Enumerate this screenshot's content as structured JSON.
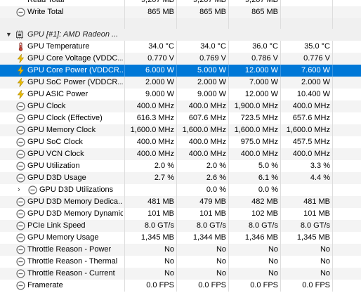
{
  "top_partial": {
    "label": "Read Total",
    "values": [
      "9,207 MB",
      "9,207 MB",
      "9,207 MB",
      ""
    ]
  },
  "write_total": {
    "label": "Write Total",
    "values": [
      "865 MB",
      "865 MB",
      "865 MB",
      ""
    ]
  },
  "group": {
    "label": "GPU [#1]: AMD Radeon ..."
  },
  "rows": [
    {
      "label": "GPU Temperature",
      "icon": "thermometer-icon",
      "values": [
        "34.0 °C",
        "34.0 °C",
        "36.0 °C",
        "35.0 °C"
      ]
    },
    {
      "label": "GPU Core Voltage (VDDC...",
      "icon": "lightning-icon",
      "values": [
        "0.770 V",
        "0.769 V",
        "0.786 V",
        "0.776 V"
      ]
    },
    {
      "label": "GPU Core Power (VDDCR...",
      "icon": "lightning-icon",
      "values": [
        "6.000 W",
        "5.000 W",
        "12.000 W",
        "7.600 W"
      ],
      "selected": true
    },
    {
      "label": "GPU SoC Power (VDDCR...",
      "icon": "lightning-icon",
      "values": [
        "2.000 W",
        "2.000 W",
        "7.000 W",
        "2.000 W"
      ]
    },
    {
      "label": "GPU ASIC Power",
      "icon": "lightning-icon",
      "values": [
        "9.000 W",
        "9.000 W",
        "12.000 W",
        "10.400 W"
      ]
    },
    {
      "label": "GPU Clock",
      "icon": "gauge-icon",
      "values": [
        "400.0 MHz",
        "400.0 MHz",
        "1,900.0 MHz",
        "400.0 MHz"
      ]
    },
    {
      "label": "GPU Clock (Effective)",
      "icon": "gauge-icon",
      "values": [
        "616.3 MHz",
        "607.6 MHz",
        "723.5 MHz",
        "657.6 MHz"
      ]
    },
    {
      "label": "GPU Memory Clock",
      "icon": "gauge-icon",
      "values": [
        "1,600.0 MHz",
        "1,600.0 MHz",
        "1,600.0 MHz",
        "1,600.0 MHz"
      ]
    },
    {
      "label": "GPU SoC Clock",
      "icon": "gauge-icon",
      "values": [
        "400.0 MHz",
        "400.0 MHz",
        "975.0 MHz",
        "457.5 MHz"
      ]
    },
    {
      "label": "GPU VCN Clock",
      "icon": "gauge-icon",
      "values": [
        "400.0 MHz",
        "400.0 MHz",
        "400.0 MHz",
        "400.0 MHz"
      ]
    },
    {
      "label": "GPU Utilization",
      "icon": "gauge-icon",
      "values": [
        "2.0 %",
        "2.0 %",
        "5.0 %",
        "3.3 %"
      ]
    },
    {
      "label": "GPU D3D Usage",
      "icon": "gauge-icon",
      "values": [
        "2.7 %",
        "2.6 %",
        "6.1 %",
        "4.4 %"
      ]
    },
    {
      "label": "GPU D3D Utilizations",
      "icon": "gauge-icon",
      "values": [
        "",
        "0.0 %",
        "0.0 %",
        ""
      ],
      "indent": true,
      "expander": "›"
    },
    {
      "label": "GPU D3D Memory Dedica...",
      "icon": "gauge-icon",
      "values": [
        "481 MB",
        "479 MB",
        "482 MB",
        "481 MB"
      ]
    },
    {
      "label": "GPU D3D Memory Dynamic",
      "icon": "gauge-icon",
      "values": [
        "101 MB",
        "101 MB",
        "102 MB",
        "101 MB"
      ]
    },
    {
      "label": "PCIe Link Speed",
      "icon": "gauge-icon",
      "values": [
        "8.0 GT/s",
        "8.0 GT/s",
        "8.0 GT/s",
        "8.0 GT/s"
      ]
    },
    {
      "label": "GPU Memory Usage",
      "icon": "gauge-icon",
      "values": [
        "1,345 MB",
        "1,344 MB",
        "1,346 MB",
        "1,345 MB"
      ]
    },
    {
      "label": "Throttle Reason - Power",
      "icon": "gauge-icon",
      "values": [
        "No",
        "No",
        "No",
        "No"
      ]
    },
    {
      "label": "Throttle Reason - Thermal",
      "icon": "gauge-icon",
      "values": [
        "No",
        "No",
        "No",
        "No"
      ]
    },
    {
      "label": "Throttle Reason - Current",
      "icon": "gauge-icon",
      "values": [
        "No",
        "No",
        "No",
        "No"
      ]
    },
    {
      "label": "Framerate",
      "icon": "gauge-icon",
      "values": [
        "0.0 FPS",
        "0.0 FPS",
        "0.0 FPS",
        "0.0 FPS"
      ]
    }
  ],
  "colors": {
    "selection": "#0078d7",
    "thermometer": "#c8443a",
    "lightning": "#f2c200",
    "gauge": "#6b6b6b"
  }
}
